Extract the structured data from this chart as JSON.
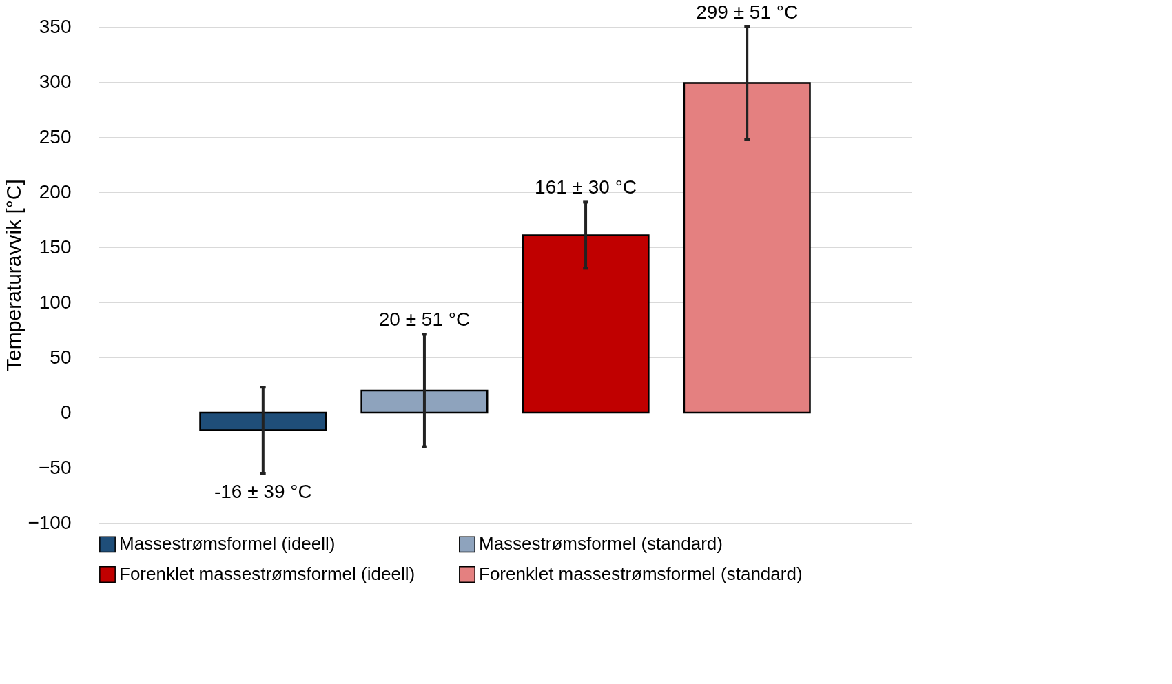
{
  "chart_data": {
    "type": "bar",
    "ylabel": "Temperaturavvik [°C]",
    "categories": [
      null
    ],
    "series": [
      {
        "name": "Massestrømsformel (ideell)",
        "color": "#1f4e79",
        "values": [
          -16
        ],
        "errors": [
          39
        ],
        "value_labels": [
          "-16 ± 39 °C"
        ]
      },
      {
        "name": "Massestrømsformel (standard)",
        "color": "#8ea3bd",
        "values": [
          20
        ],
        "errors": [
          51
        ],
        "value_labels": [
          "20 ± 51 °C"
        ]
      },
      {
        "name": "Forenklet massestrømsformel (ideell)",
        "color": "#c00000",
        "values": [
          161
        ],
        "errors": [
          30
        ],
        "value_labels": [
          "161 ± 30 °C"
        ]
      },
      {
        "name": "Forenklet massestrømsformel (standard)",
        "color": "#e48080",
        "values": [
          299
        ],
        "errors": [
          51
        ],
        "value_labels": [
          "299 ± 51 °C"
        ]
      }
    ],
    "ylim": [
      -100,
      350
    ],
    "yticks": [
      -100,
      -50,
      0,
      50,
      100,
      150,
      200,
      250,
      300,
      350
    ],
    "grid": "y",
    "legend": "bottom",
    "tick_labels": "y"
  }
}
